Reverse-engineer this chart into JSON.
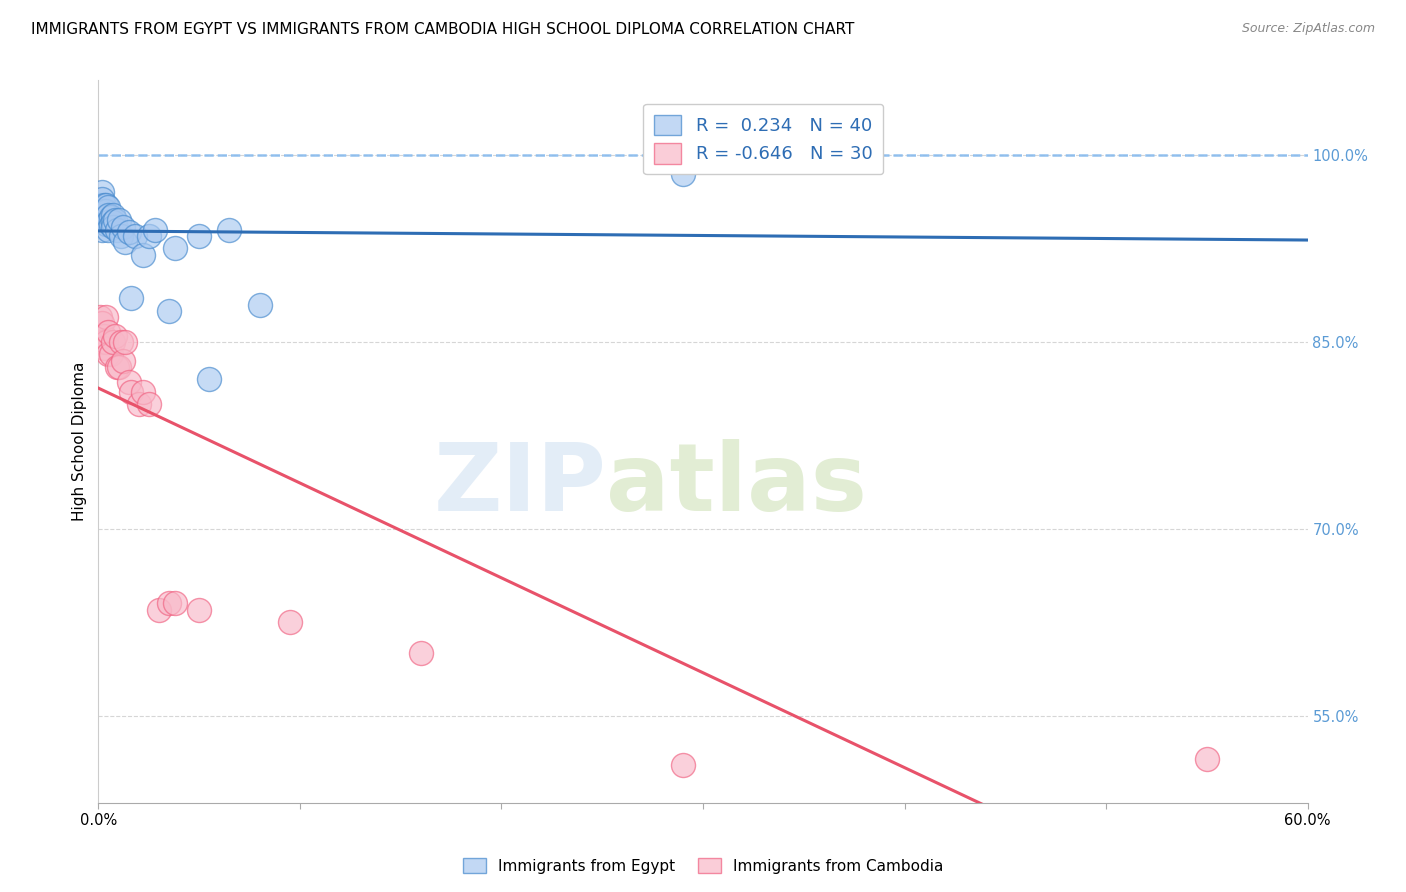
{
  "title": "IMMIGRANTS FROM EGYPT VS IMMIGRANTS FROM CAMBODIA HIGH SCHOOL DIPLOMA CORRELATION CHART",
  "source": "Source: ZipAtlas.com",
  "ylabel": "High School Diploma",
  "watermark_zip": "ZIP",
  "watermark_atlas": "atlas",
  "xlim": [
    0.0,
    0.6
  ],
  "ylim": [
    0.48,
    1.06
  ],
  "xticks": [
    0.0,
    0.1,
    0.2,
    0.3,
    0.4,
    0.5,
    0.6
  ],
  "xtick_labels": [
    "0.0%",
    "",
    "",
    "",
    "",
    "",
    "60.0%"
  ],
  "ytick_positions": [
    1.0,
    0.85,
    0.7,
    0.55
  ],
  "ytick_labels": [
    "100.0%",
    "85.0%",
    "70.0%",
    "55.0%"
  ],
  "egypt_color": "#A8C8F0",
  "cambodia_color": "#F8B8C8",
  "egypt_edge_color": "#4488CC",
  "cambodia_edge_color": "#F06080",
  "egypt_line_color": "#2E6DB4",
  "cambodia_line_color": "#E8526A",
  "dashed_line_color": "#88BBEE",
  "legend_egypt_R": "0.234",
  "legend_egypt_N": "40",
  "legend_cambodia_R": "-0.646",
  "legend_cambodia_N": "30",
  "egypt_x": [
    0.001,
    0.001,
    0.002,
    0.002,
    0.002,
    0.003,
    0.003,
    0.003,
    0.004,
    0.004,
    0.004,
    0.004,
    0.005,
    0.005,
    0.005,
    0.005,
    0.006,
    0.006,
    0.007,
    0.007,
    0.007,
    0.008,
    0.009,
    0.01,
    0.011,
    0.012,
    0.013,
    0.015,
    0.016,
    0.018,
    0.022,
    0.025,
    0.028,
    0.035,
    0.038,
    0.05,
    0.055,
    0.065,
    0.08,
    0.29
  ],
  "egypt_y": [
    0.955,
    0.96,
    0.97,
    0.965,
    0.94,
    0.96,
    0.955,
    0.95,
    0.955,
    0.96,
    0.945,
    0.95,
    0.958,
    0.952,
    0.946,
    0.94,
    0.95,
    0.944,
    0.952,
    0.946,
    0.942,
    0.948,
    0.94,
    0.948,
    0.935,
    0.942,
    0.93,
    0.938,
    0.885,
    0.935,
    0.92,
    0.935,
    0.94,
    0.875,
    0.925,
    0.935,
    0.82,
    0.94,
    0.88,
    0.985
  ],
  "cambodia_x": [
    0.001,
    0.002,
    0.002,
    0.003,
    0.003,
    0.004,
    0.004,
    0.005,
    0.005,
    0.006,
    0.007,
    0.008,
    0.009,
    0.01,
    0.011,
    0.012,
    0.013,
    0.015,
    0.016,
    0.02,
    0.022,
    0.025,
    0.03,
    0.035,
    0.038,
    0.05,
    0.095,
    0.16,
    0.29,
    0.55
  ],
  "cambodia_y": [
    0.87,
    0.865,
    0.85,
    0.855,
    0.845,
    0.87,
    0.85,
    0.858,
    0.84,
    0.84,
    0.85,
    0.855,
    0.83,
    0.83,
    0.85,
    0.835,
    0.85,
    0.818,
    0.81,
    0.8,
    0.81,
    0.8,
    0.635,
    0.64,
    0.64,
    0.635,
    0.625,
    0.6,
    0.51,
    0.515
  ],
  "background_color": "#FFFFFF",
  "grid_color": "#CCCCCC",
  "ytick_color": "#5B9BD5",
  "title_fontsize": 11,
  "axis_label_fontsize": 11,
  "tick_fontsize": 10.5,
  "legend_fontsize": 13
}
